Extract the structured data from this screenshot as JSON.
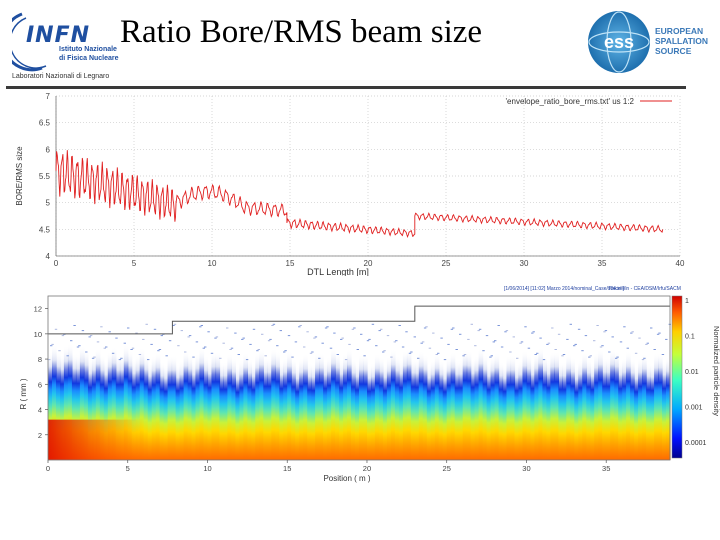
{
  "header": {
    "title": "Ratio Bore/RMS beam size",
    "infn_logo": {
      "word": "INFN",
      "line1": "Istituto Nazionale",
      "line2": "di Fisica Nucleare",
      "lab": "Laboratori Nazionali di Legnaro"
    },
    "ess_logo": {
      "mark": "ess",
      "line1": "EUROPEAN",
      "line2": "SPALLATION",
      "line3": "SOURCE"
    }
  },
  "chart_data": [
    {
      "type": "line",
      "ylabel": "BORE/RMS size",
      "xlabel": "DTL Length [m]",
      "xlim": [
        0,
        40
      ],
      "ylim": [
        4,
        7
      ],
      "xticks": [
        0,
        5,
        10,
        15,
        20,
        25,
        30,
        35,
        40
      ],
      "yticks": [
        4,
        4.5,
        5,
        5.5,
        6,
        6.5,
        7
      ],
      "legend": "'envelope_ratio_bore_rms.txt' us 1:2",
      "legend_position": "top-right",
      "series_color": "#e02020",
      "segments": [
        {
          "x_start": 0.0,
          "x_end": 7.7,
          "mean_start": 5.6,
          "mean_end": 4.95,
          "amp_start": 0.35,
          "amp_end": 0.25,
          "periods": 24
        },
        {
          "x_start": 7.7,
          "x_end": 14.8,
          "mean_start": 5.0,
          "mean_end": 4.85,
          "amp_start": 0.12,
          "amp_end": 0.1,
          "periods": 16,
          "bump": 0.25
        },
        {
          "x_start": 14.8,
          "x_end": 23.0,
          "mean_start": 4.62,
          "mean_end": 4.42,
          "amp_start": 0.07,
          "amp_end": 0.05,
          "periods": 22
        },
        {
          "x_start": 23.0,
          "x_end": 38.9,
          "mean_start": 4.75,
          "mean_end": 4.5,
          "amp_start": 0.05,
          "amp_end": 0.05,
          "periods": 40
        }
      ]
    },
    {
      "type": "heatmap",
      "ylabel": "R ( mm )",
      "xlabel": "Position ( m )",
      "xlim": [
        0,
        39
      ],
      "ylim": [
        0,
        13
      ],
      "xticks": [
        0,
        5,
        10,
        15,
        20,
        25,
        30,
        35
      ],
      "yticks": [
        2,
        4,
        6,
        8,
        10,
        12
      ],
      "header_left": "[1/06/2014] [11:02] Marzo 2014/nominal_Case/s04.in ]",
      "header_right": "TraceWin - CEA/DSM/Irfu/SACM",
      "colorbar_label": "Normalized particle density",
      "colorbar_ticks": [
        "1",
        "0.1",
        "0.01",
        "0.001",
        "0.0001"
      ],
      "bore_steps": [
        {
          "x_start": 0,
          "x_end": 7.8,
          "r": 10.0
        },
        {
          "x_start": 7.8,
          "x_end": 23.0,
          "r": 11.0
        },
        {
          "x_start": 23.0,
          "x_end": 39,
          "r": 12.2
        }
      ]
    }
  ]
}
